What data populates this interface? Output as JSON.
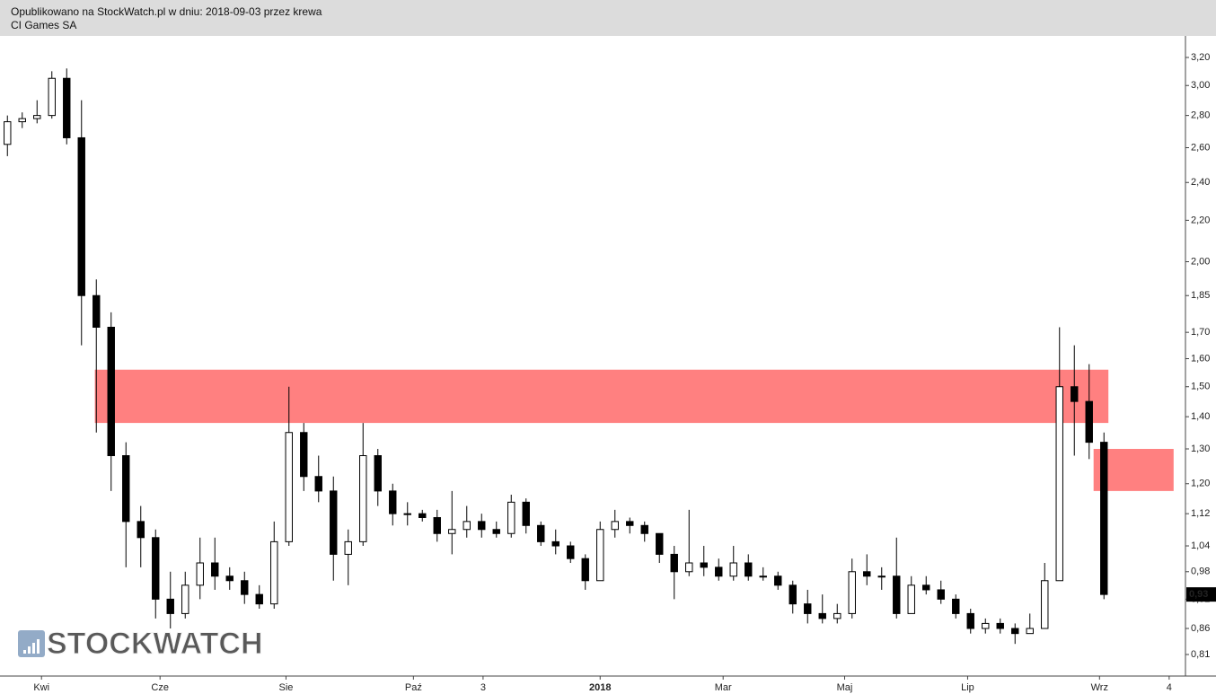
{
  "header": {
    "line1": "Opublikowano na StockWatch.pl w dniu: 2018-09-03 przez krewa",
    "line2": "CI Games SA"
  },
  "chart_data": {
    "type": "candlestick",
    "log_y": true,
    "grid": false,
    "up_color": "#ffffff",
    "down_color": "#000000",
    "outline_color": "#000000",
    "xlim": [
      0,
      80
    ],
    "ylim": [
      0.81,
      3.2
    ],
    "yticks": [
      {
        "value": 3.2,
        "label": "3,20"
      },
      {
        "value": 3.0,
        "label": "3,00"
      },
      {
        "value": 2.8,
        "label": "2,80"
      },
      {
        "value": 2.6,
        "label": "2,60"
      },
      {
        "value": 2.4,
        "label": "2,40"
      },
      {
        "value": 2.2,
        "label": "2,20"
      },
      {
        "value": 2.0,
        "label": "2,00"
      },
      {
        "value": 1.85,
        "label": "1,85"
      },
      {
        "value": 1.7,
        "label": "1,70"
      },
      {
        "value": 1.6,
        "label": "1,60"
      },
      {
        "value": 1.5,
        "label": "1,50"
      },
      {
        "value": 1.4,
        "label": "1,40"
      },
      {
        "value": 1.3,
        "label": "1,30"
      },
      {
        "value": 1.2,
        "label": "1,20"
      },
      {
        "value": 1.12,
        "label": "1,12"
      },
      {
        "value": 1.04,
        "label": "1,04"
      },
      {
        "value": 0.98,
        "label": "0,98"
      },
      {
        "value": 0.92,
        "label": "0,92"
      },
      {
        "value": 0.86,
        "label": "0,86"
      },
      {
        "value": 0.81,
        "label": "0,81"
      }
    ],
    "xticks": [
      {
        "value": 2.8,
        "label": "Kwi"
      },
      {
        "value": 10.8,
        "label": "Cze"
      },
      {
        "value": 19.3,
        "label": "Sie"
      },
      {
        "value": 27.9,
        "label": "Paź"
      },
      {
        "value": 32.6,
        "label": "3"
      },
      {
        "value": 40.5,
        "label": "2018",
        "bold": true
      },
      {
        "value": 48.8,
        "label": "Mar"
      },
      {
        "value": 57,
        "label": "Maj"
      },
      {
        "value": 65.3,
        "label": "Lip"
      },
      {
        "value": 74.2,
        "label": "Wrz"
      },
      {
        "value": 78.9,
        "label": "4"
      }
    ],
    "x": [
      0.5,
      1.5,
      2.5,
      3.5,
      4.5,
      5.5,
      6.5,
      7.5,
      8.5,
      9.5,
      10.5,
      11.5,
      12.5,
      13.5,
      14.5,
      15.5,
      16.5,
      17.5,
      18.5,
      19.5,
      20.5,
      21.5,
      22.5,
      23.5,
      24.5,
      25.5,
      26.5,
      27.5,
      28.5,
      29.5,
      30.5,
      31.5,
      32.5,
      33.5,
      34.5,
      35.5,
      36.5,
      37.5,
      38.5,
      39.5,
      40.5,
      41.5,
      42.5,
      43.5,
      44.5,
      45.5,
      46.5,
      47.5,
      48.5,
      49.5,
      50.5,
      51.5,
      52.5,
      53.5,
      54.5,
      55.5,
      56.5,
      57.5,
      58.5,
      59.5,
      60.5,
      61.5,
      62.5,
      63.5,
      64.5,
      65.5,
      66.5,
      67.5,
      68.5,
      69.5,
      70.5,
      71.5,
      72.5,
      73.5,
      74.5
    ],
    "open": [
      2.62,
      2.76,
      2.78,
      2.8,
      3.05,
      2.66,
      1.85,
      1.72,
      1.28,
      1.1,
      1.06,
      0.92,
      0.89,
      0.95,
      1.0,
      0.97,
      0.96,
      0.93,
      0.91,
      1.05,
      1.35,
      1.22,
      1.18,
      1.02,
      1.05,
      1.28,
      1.18,
      1.12,
      1.12,
      1.11,
      1.07,
      1.08,
      1.1,
      1.08,
      1.07,
      1.15,
      1.09,
      1.05,
      1.04,
      1.01,
      0.96,
      1.08,
      1.1,
      1.09,
      1.07,
      1.02,
      0.98,
      1.0,
      0.99,
      0.97,
      1.0,
      0.97,
      0.97,
      0.95,
      0.91,
      0.89,
      0.88,
      0.89,
      0.98,
      0.97,
      0.97,
      0.89,
      0.95,
      0.94,
      0.92,
      0.89,
      0.86,
      0.87,
      0.86,
      0.85,
      0.86,
      0.96,
      1.5,
      1.45,
      1.32
    ],
    "high": [
      2.8,
      2.82,
      2.9,
      3.1,
      3.12,
      2.9,
      1.92,
      1.78,
      1.32,
      1.14,
      1.08,
      0.98,
      0.98,
      1.06,
      1.06,
      0.99,
      0.98,
      0.95,
      1.1,
      1.5,
      1.38,
      1.28,
      1.22,
      1.08,
      1.38,
      1.3,
      1.2,
      1.15,
      1.13,
      1.13,
      1.18,
      1.14,
      1.12,
      1.1,
      1.17,
      1.16,
      1.1,
      1.08,
      1.05,
      1.02,
      1.1,
      1.13,
      1.11,
      1.1,
      1.07,
      1.04,
      1.13,
      1.04,
      1.01,
      1.04,
      1.02,
      0.99,
      0.98,
      0.96,
      0.94,
      0.93,
      0.91,
      1.01,
      1.02,
      0.99,
      1.06,
      0.97,
      0.97,
      0.96,
      0.93,
      0.9,
      0.88,
      0.88,
      0.87,
      0.89,
      1.0,
      1.72,
      1.65,
      1.58,
      1.35
    ],
    "low": [
      2.55,
      2.72,
      2.75,
      2.78,
      2.62,
      1.65,
      1.35,
      1.18,
      0.99,
      0.99,
      0.88,
      0.86,
      0.88,
      0.92,
      0.94,
      0.94,
      0.91,
      0.9,
      0.9,
      1.04,
      1.18,
      1.15,
      0.96,
      0.95,
      1.04,
      1.14,
      1.09,
      1.09,
      1.1,
      1.05,
      1.02,
      1.06,
      1.06,
      1.06,
      1.06,
      1.07,
      1.04,
      1.02,
      1.0,
      0.94,
      0.96,
      1.06,
      1.07,
      1.05,
      1.0,
      0.92,
      0.97,
      0.97,
      0.96,
      0.96,
      0.96,
      0.96,
      0.94,
      0.89,
      0.87,
      0.87,
      0.87,
      0.88,
      0.95,
      0.94,
      0.88,
      0.89,
      0.93,
      0.91,
      0.88,
      0.85,
      0.85,
      0.85,
      0.83,
      0.85,
      0.86,
      0.96,
      1.28,
      1.27,
      0.92
    ],
    "close": [
      2.76,
      2.78,
      2.8,
      3.05,
      2.66,
      1.85,
      1.72,
      1.28,
      1.1,
      1.06,
      0.92,
      0.89,
      0.95,
      1.0,
      0.97,
      0.96,
      0.93,
      0.91,
      1.05,
      1.35,
      1.22,
      1.18,
      1.02,
      1.05,
      1.28,
      1.18,
      1.12,
      1.12,
      1.11,
      1.07,
      1.08,
      1.1,
      1.08,
      1.07,
      1.15,
      1.09,
      1.05,
      1.04,
      1.01,
      0.96,
      1.08,
      1.1,
      1.09,
      1.07,
      1.02,
      0.98,
      1.0,
      0.99,
      0.97,
      1.0,
      0.97,
      0.97,
      0.95,
      0.91,
      0.89,
      0.88,
      0.89,
      0.98,
      0.97,
      0.97,
      0.89,
      0.95,
      0.94,
      0.92,
      0.89,
      0.86,
      0.87,
      0.86,
      0.85,
      0.86,
      0.96,
      1.5,
      1.45,
      1.32,
      0.93
    ],
    "zones": [
      {
        "x": [
          6.4,
          74.8
        ],
        "y": [
          1.38,
          1.56
        ],
        "color": "#ff8080"
      },
      {
        "x": [
          73.8,
          79.2
        ],
        "y": [
          1.18,
          1.3
        ],
        "color": "#ff8080"
      }
    ],
    "last_price": {
      "value": 0.93,
      "label": "0,93"
    },
    "watermark": "STOCKWATCH"
  }
}
